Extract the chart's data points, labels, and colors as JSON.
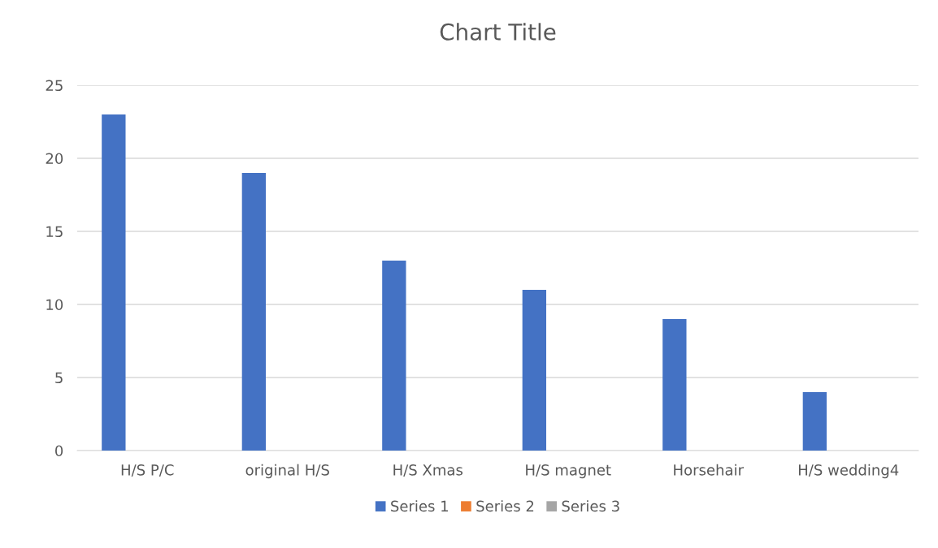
{
  "chart_data": {
    "type": "bar",
    "title": "Chart Title",
    "categories": [
      "H/S P/C",
      "original H/S",
      "H/S Xmas",
      "H/S magnet",
      "Horsehair",
      "H/S wedding4"
    ],
    "series": [
      {
        "name": "Series 1",
        "color": "#4472c4",
        "values": [
          23,
          19,
          13,
          11,
          9,
          4
        ]
      },
      {
        "name": "Series 2",
        "color": "#ed7d31",
        "values": [
          null,
          null,
          null,
          null,
          null,
          null
        ]
      },
      {
        "name": "Series 3",
        "color": "#a5a5a5",
        "values": [
          null,
          null,
          null,
          null,
          null,
          null
        ]
      }
    ],
    "ylim": [
      0,
      25
    ],
    "yticks": [
      0,
      5,
      10,
      15,
      20,
      25
    ],
    "grid": "y",
    "legend": "bottom"
  }
}
